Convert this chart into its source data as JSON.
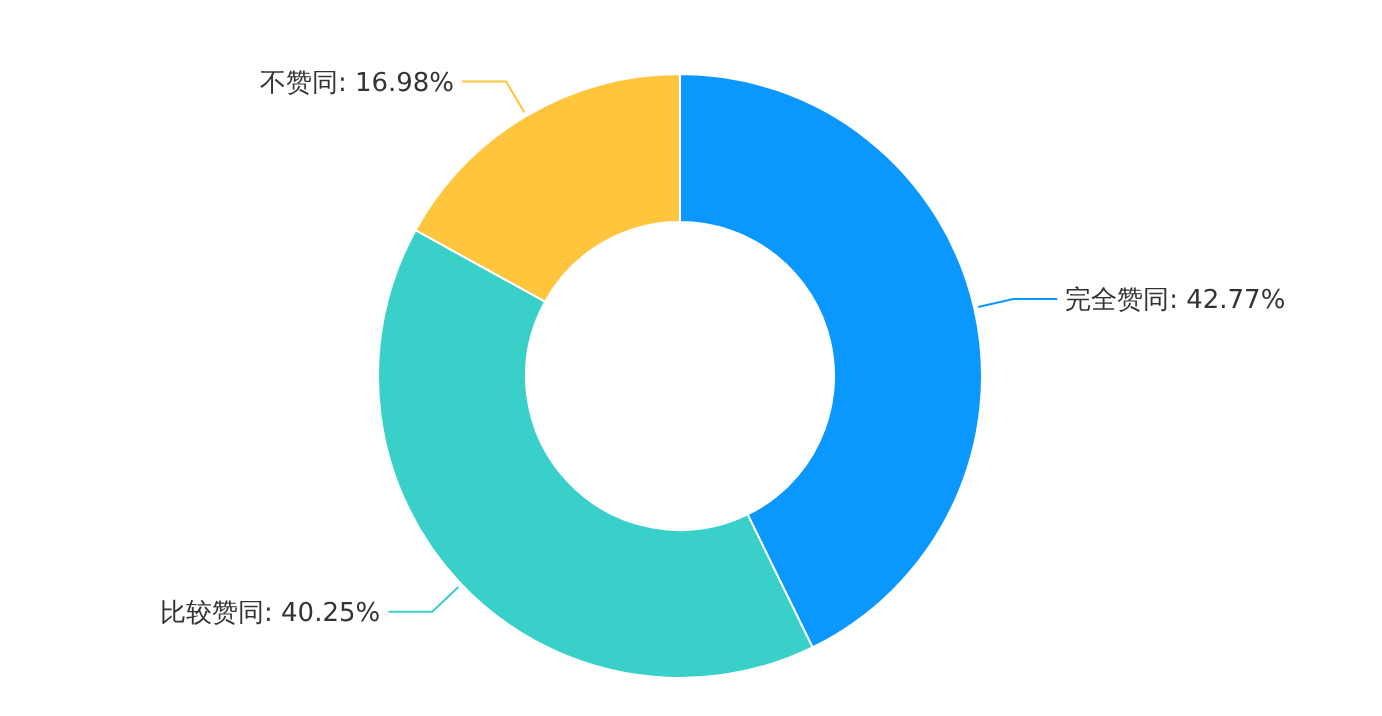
{
  "chart_data": {
    "type": "donut",
    "categories": [
      "完全赞同",
      "比较赞同",
      "不赞同"
    ],
    "values": [
      42.77,
      40.25,
      16.98
    ],
    "value_labels": [
      "42.77%",
      "40.25%",
      "16.98%"
    ],
    "colors": [
      "#0a98ff",
      "#38d0c9",
      "#ffc53d"
    ]
  }
}
